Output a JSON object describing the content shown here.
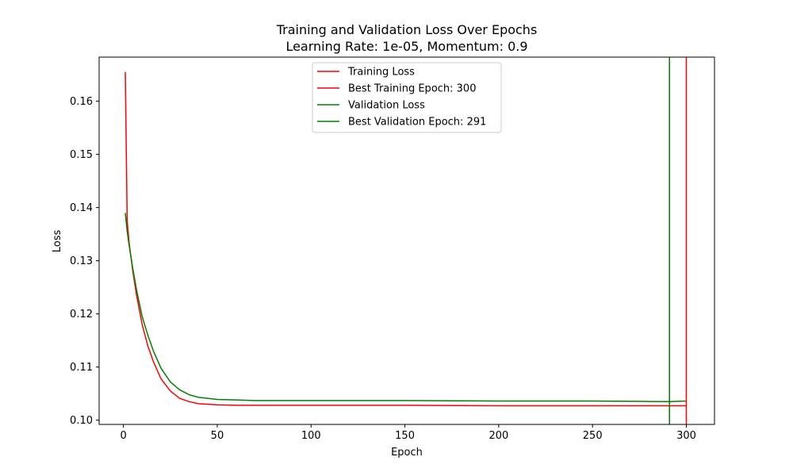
{
  "chart_data": {
    "type": "line",
    "title": "Training and Validation Loss Over Epochs",
    "subtitle": "Learning Rate: 1e-05, Momentum: 0.9",
    "xlabel": "Epoch",
    "ylabel": "Loss",
    "xlim": [
      -12.95,
      315
    ],
    "ylim": [
      0.0992,
      0.1683
    ],
    "xticks": [
      0,
      50,
      100,
      150,
      200,
      250,
      300
    ],
    "yticks": [
      0.1,
      0.11,
      0.12,
      0.13,
      0.14,
      0.15,
      0.16
    ],
    "ytick_labels": [
      "0.10",
      "0.11",
      "0.12",
      "0.13",
      "0.14",
      "0.15",
      "0.16"
    ],
    "grid": false,
    "legend_position": "top-center",
    "series": [
      {
        "name": "Training Loss",
        "color": "#ff0000",
        "x": [
          1,
          2,
          3,
          5,
          7,
          10,
          13,
          16,
          20,
          25,
          30,
          35,
          40,
          45,
          50,
          60,
          70,
          80,
          100,
          150,
          200,
          250,
          300
        ],
        "y": [
          0.1655,
          0.1375,
          0.1335,
          0.128,
          0.1235,
          0.118,
          0.114,
          0.111,
          0.1078,
          0.1055,
          0.1041,
          0.1035,
          0.1031,
          0.103,
          0.1029,
          0.1028,
          0.1028,
          0.1028,
          0.1028,
          0.1028,
          0.1027,
          0.1027,
          0.1027
        ]
      },
      {
        "name": "Validation Loss",
        "color": "#008000",
        "x": [
          1,
          2,
          3,
          5,
          7,
          10,
          13,
          16,
          20,
          25,
          30,
          35,
          40,
          45,
          50,
          60,
          70,
          80,
          100,
          150,
          200,
          250,
          291,
          300
        ],
        "y": [
          0.139,
          0.1355,
          0.133,
          0.1285,
          0.1245,
          0.1195,
          0.116,
          0.113,
          0.1098,
          0.1072,
          0.1057,
          0.1048,
          0.1043,
          0.1041,
          0.1039,
          0.1038,
          0.1037,
          0.1037,
          0.1037,
          0.1037,
          0.1036,
          0.1036,
          0.1035,
          0.1036
        ]
      }
    ],
    "vlines": [
      {
        "name": "Best Training Epoch: 300",
        "x": 300,
        "color": "#ff0000"
      },
      {
        "name": "Best Validation Epoch: 291",
        "x": 291,
        "color": "#008000"
      }
    ],
    "legend": [
      {
        "label": "Training Loss",
        "color": "#ff0000"
      },
      {
        "label": "Best Training Epoch: 300",
        "color": "#ff0000"
      },
      {
        "label": "Validation Loss",
        "color": "#008000"
      },
      {
        "label": "Best Validation Epoch: 291",
        "color": "#008000"
      }
    ]
  }
}
